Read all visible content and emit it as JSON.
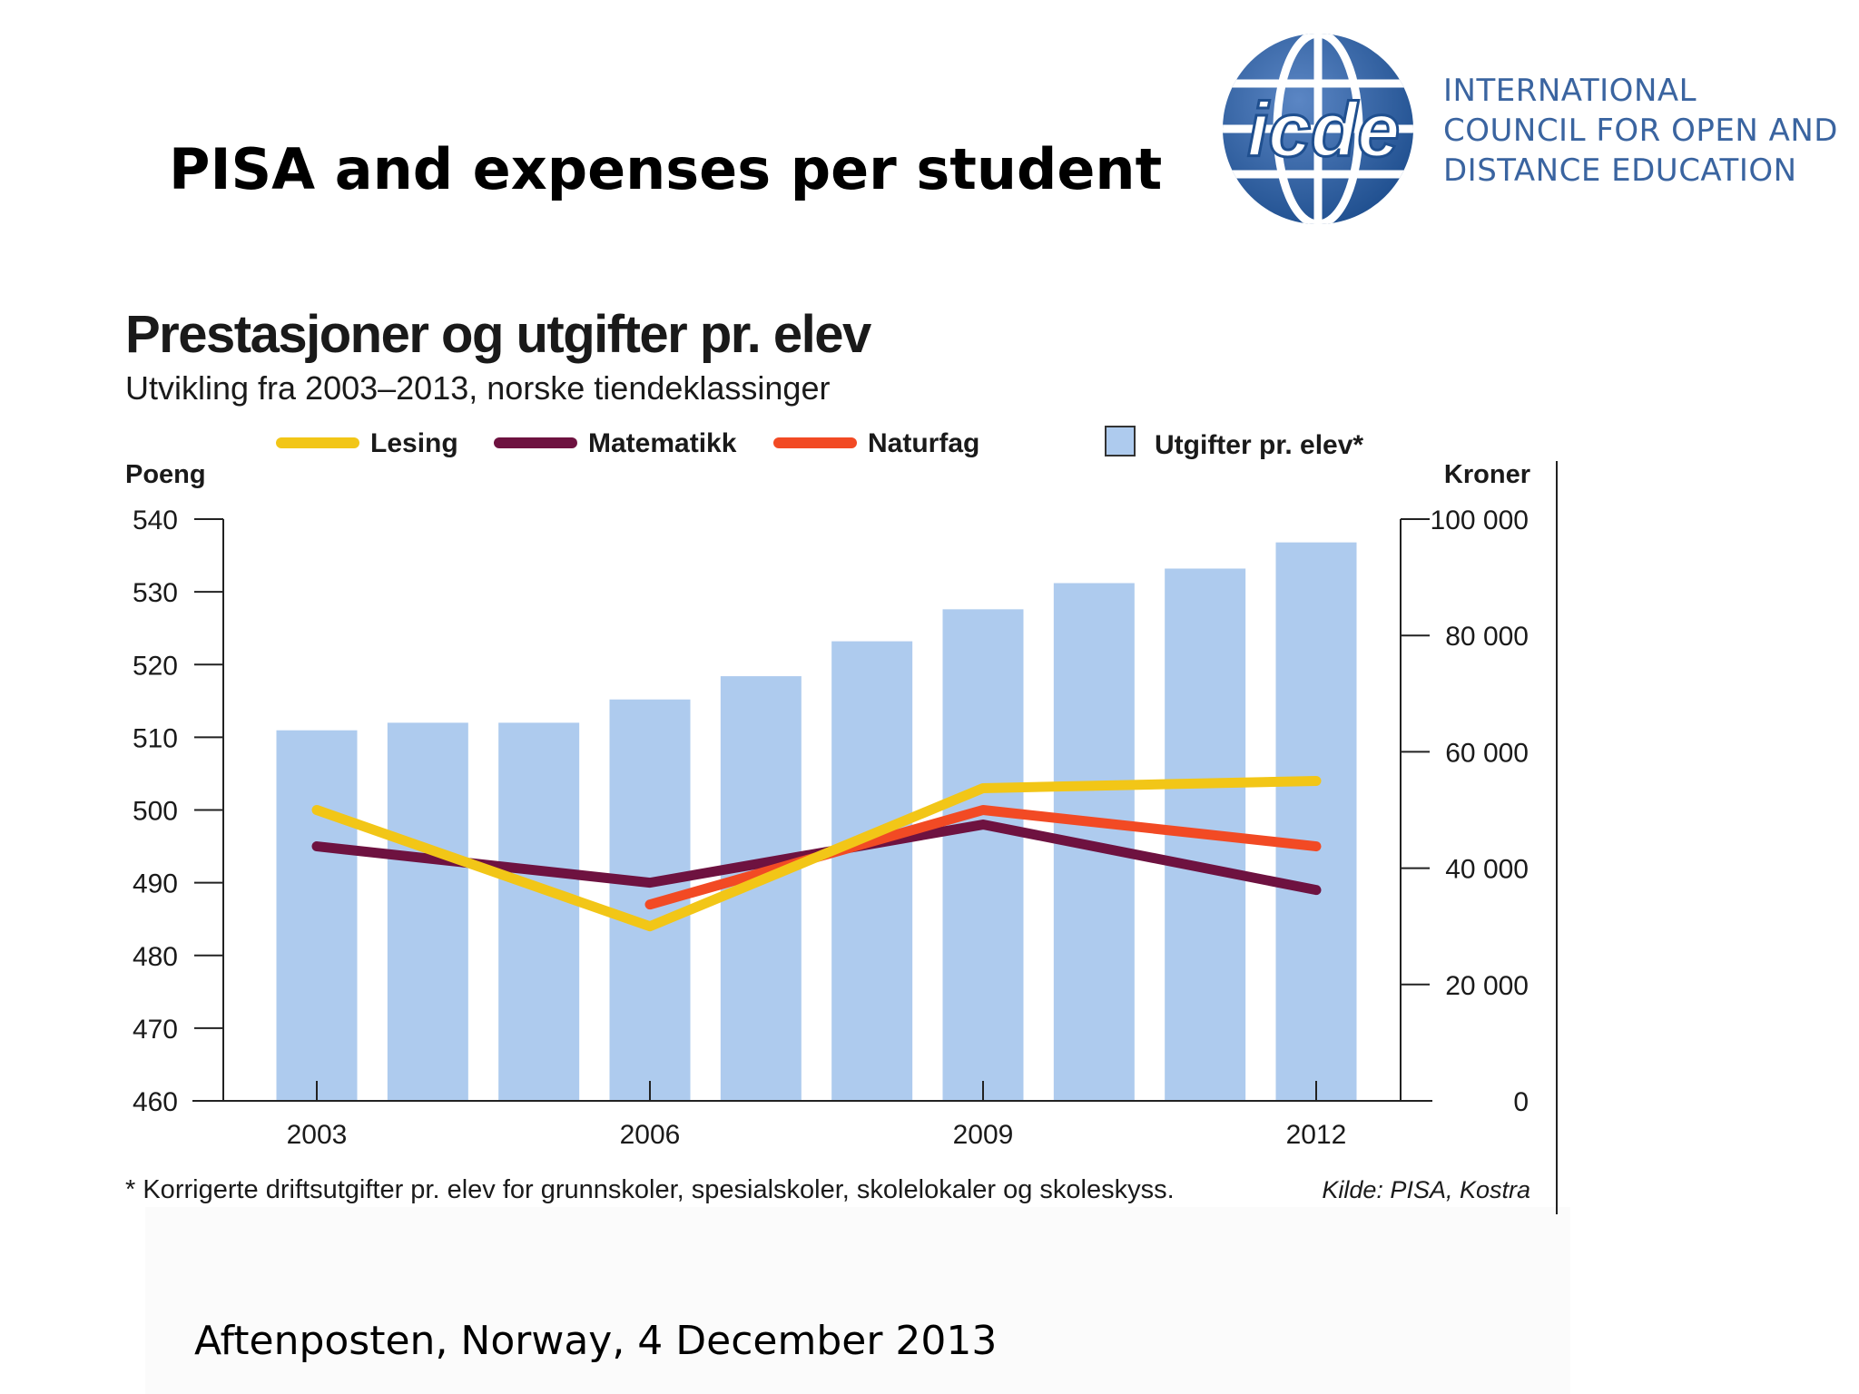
{
  "slide": {
    "title": "PISA and expenses per student",
    "footer": "Aftenposten, Norway, 4 December 2013"
  },
  "logo": {
    "mark": "icde",
    "lines": [
      "INTERNATIONAL",
      "COUNCIL FOR OPEN AND",
      "DISTANCE EDUCATION"
    ],
    "color": "#2f5d9e"
  },
  "chart_data": {
    "type": "bar",
    "title": "Prestasjoner og utgifter pr. elev",
    "subtitle": "Utvikling fra 2003–2013, norske tiendeklassinger",
    "ylabel_left": "Poeng",
    "ylabel_right": "Kroner",
    "ylim_left": [
      460,
      540
    ],
    "yticks_left": [
      540,
      530,
      520,
      510,
      500,
      490,
      480,
      470,
      460
    ],
    "ylim_right": [
      0,
      100000
    ],
    "yticks_right": [
      "100 000",
      "80 000",
      "60 000",
      "40 000",
      "20 000",
      "0"
    ],
    "yticks_right_values": [
      100000,
      80000,
      60000,
      40000,
      20000,
      0
    ],
    "x_tick_labels": [
      "2003",
      "2006",
      "2009",
      "2012"
    ],
    "x_tick_values": [
      2003,
      2006,
      2009,
      2012
    ],
    "bars": {
      "name": "Utgifter pr. elev*",
      "x": [
        2003,
        2004,
        2005,
        2006,
        2007,
        2008,
        2009,
        2010,
        2011,
        2012
      ],
      "values": [
        63700,
        65000,
        65000,
        69000,
        73000,
        79000,
        84500,
        89000,
        91500,
        96000
      ],
      "color": "#aecbee"
    },
    "series": [
      {
        "name": "Lesing",
        "x": [
          2003,
          2006,
          2009,
          2012
        ],
        "values": [
          500,
          484,
          503,
          504
        ],
        "color": "#f2c617"
      },
      {
        "name": "Matematikk",
        "x": [
          2003,
          2006,
          2009,
          2012
        ],
        "values": [
          495,
          490,
          498,
          489
        ],
        "color": "#6e1240"
      },
      {
        "name": "Naturfag",
        "x": [
          2006,
          2009,
          2012
        ],
        "values": [
          487,
          500,
          495
        ],
        "color": "#f24a24"
      }
    ],
    "legend_placement": "top",
    "grid": false,
    "footnote": "* Korrigerte driftsutgifter pr. elev for grunnskoler, spesialskoler, skolelokaler og skoleskyss.",
    "source": "Kilde: PISA, Kostra"
  }
}
